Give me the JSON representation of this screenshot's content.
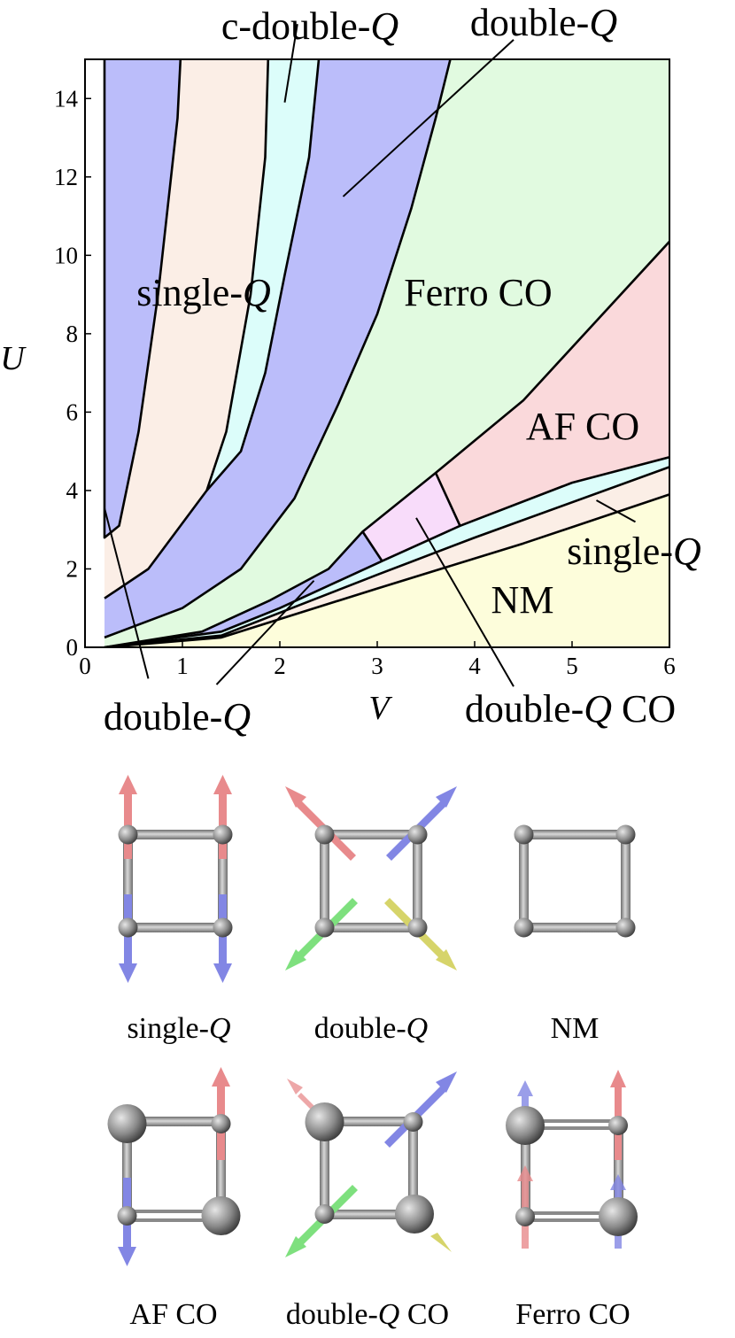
{
  "colors": {
    "blue_region": "#bbbdfa",
    "peach_region": "#fbeee6",
    "cyan_region": "#dcfdfa",
    "green_region": "#e1fae0",
    "pink_region": "#fad9db",
    "lavender_region": "#f8dcfa",
    "yellow_region": "#fdfddb",
    "spin_up": "#e88a8c",
    "spin_down": "#8286e4",
    "spin_green": "#7ee07e",
    "spin_yellow": "#d6d46a",
    "site": "#8a8a8a"
  },
  "chart_data": {
    "type": "phase-diagram",
    "xlabel": "V",
    "ylabel": "U",
    "xlim": [
      0,
      6
    ],
    "ylim": [
      0,
      15
    ],
    "x_ticks": [
      "0",
      "1",
      "2",
      "3",
      "4",
      "5",
      "6"
    ],
    "y_ticks": [
      "0",
      "2",
      "4",
      "6",
      "8",
      "10",
      "12",
      "14"
    ],
    "boundaries": [
      {
        "id": "b1",
        "points": [
          [
            0.2,
            15
          ],
          [
            0.2,
            2.8
          ],
          [
            0.35,
            3.1
          ],
          [
            0.55,
            5.5
          ],
          [
            0.75,
            9.0
          ],
          [
            0.95,
            13.5
          ],
          [
            0.98,
            15
          ]
        ]
      },
      {
        "id": "b2",
        "points": [
          [
            0.2,
            1.25
          ],
          [
            0.65,
            2.0
          ],
          [
            1.25,
            4.0
          ],
          [
            1.45,
            5.5
          ],
          [
            1.7,
            9.0
          ],
          [
            1.85,
            12.5
          ],
          [
            1.88,
            15
          ]
        ]
      },
      {
        "id": "b3",
        "points": [
          [
            1.25,
            4.0
          ],
          [
            1.6,
            5.0
          ],
          [
            1.85,
            7.0
          ],
          [
            2.05,
            9.5
          ],
          [
            2.3,
            12.5
          ],
          [
            2.4,
            15
          ]
        ]
      },
      {
        "id": "b4",
        "points": [
          [
            0.2,
            0.25
          ],
          [
            1.0,
            1.0
          ],
          [
            1.6,
            2.0
          ],
          [
            2.15,
            3.8
          ],
          [
            2.6,
            6.2
          ],
          [
            3.0,
            8.5
          ],
          [
            3.35,
            11.2
          ],
          [
            3.6,
            13.5
          ],
          [
            3.75,
            15
          ]
        ]
      },
      {
        "id": "b5",
        "points": [
          [
            0.2,
            0.0
          ],
          [
            1.2,
            0.4
          ],
          [
            1.9,
            1.2
          ],
          [
            2.5,
            2.0
          ],
          [
            2.85,
            2.95
          ],
          [
            3.6,
            4.45
          ],
          [
            4.5,
            6.3
          ],
          [
            6.0,
            10.35
          ]
        ]
      },
      {
        "id": "b6",
        "points": [
          [
            0.2,
            0.0
          ],
          [
            1.4,
            0.4
          ],
          [
            2.0,
            1.0
          ],
          [
            3.05,
            2.2
          ],
          [
            3.85,
            3.1
          ],
          [
            5.0,
            4.2
          ],
          [
            6.0,
            4.85
          ]
        ]
      },
      {
        "id": "b7",
        "points": [
          [
            0.2,
            0.0
          ],
          [
            1.4,
            0.3
          ],
          [
            3.0,
            1.85
          ],
          [
            4.0,
            2.8
          ],
          [
            6.0,
            4.6
          ]
        ]
      },
      {
        "id": "b8",
        "points": [
          [
            0.2,
            0.0
          ],
          [
            1.4,
            0.25
          ],
          [
            3.0,
            1.5
          ],
          [
            4.5,
            2.65
          ],
          [
            6.0,
            3.9
          ]
        ]
      },
      {
        "id": "b9",
        "points": [
          [
            2.85,
            2.95
          ],
          [
            3.05,
            2.2
          ]
        ]
      },
      {
        "id": "b10",
        "points": [
          [
            3.6,
            4.45
          ],
          [
            3.85,
            3.1
          ]
        ]
      }
    ],
    "regions": [
      {
        "name": "single-Q",
        "color_key": "blue_region",
        "polygon": [
          [
            0.2,
            15
          ],
          [
            0.98,
            15
          ],
          [
            0.95,
            13.5
          ],
          [
            0.75,
            9.0
          ],
          [
            0.55,
            5.5
          ],
          [
            0.35,
            3.1
          ],
          [
            0.2,
            2.8
          ]
        ]
      },
      {
        "name": "single-Q",
        "color_key": "peach_region",
        "polygon": [
          [
            0.98,
            15
          ],
          [
            1.88,
            15
          ],
          [
            1.85,
            12.5
          ],
          [
            1.7,
            9.0
          ],
          [
            1.45,
            5.5
          ],
          [
            1.25,
            4.0
          ],
          [
            0.65,
            2.0
          ],
          [
            0.2,
            1.25
          ],
          [
            0.2,
            2.8
          ],
          [
            0.35,
            3.1
          ],
          [
            0.55,
            5.5
          ],
          [
            0.75,
            9.0
          ],
          [
            0.95,
            13.5
          ]
        ]
      },
      {
        "name": "c-double-Q",
        "color_key": "cyan_region",
        "polygon": [
          [
            1.88,
            15
          ],
          [
            2.4,
            15
          ],
          [
            2.3,
            12.5
          ],
          [
            2.05,
            9.5
          ],
          [
            1.85,
            7.0
          ],
          [
            1.6,
            5.0
          ],
          [
            1.25,
            4.0
          ],
          [
            1.45,
            5.5
          ],
          [
            1.7,
            9.0
          ],
          [
            1.85,
            12.5
          ]
        ]
      },
      {
        "name": "double-Q",
        "color_key": "blue_region",
        "polygon": [
          [
            2.4,
            15
          ],
          [
            3.75,
            15
          ],
          [
            3.6,
            13.5
          ],
          [
            3.35,
            11.2
          ],
          [
            3.0,
            8.5
          ],
          [
            2.6,
            6.2
          ],
          [
            2.15,
            3.8
          ],
          [
            1.6,
            2.0
          ],
          [
            1.0,
            1.0
          ],
          [
            0.2,
            0.25
          ],
          [
            0.2,
            1.25
          ],
          [
            0.65,
            2.0
          ],
          [
            1.25,
            4.0
          ],
          [
            1.6,
            5.0
          ],
          [
            1.85,
            7.0
          ],
          [
            2.05,
            9.5
          ],
          [
            2.3,
            12.5
          ]
        ]
      },
      {
        "name": "Ferro CO",
        "color_key": "green_region",
        "polygon": [
          [
            3.75,
            15
          ],
          [
            6.0,
            15
          ],
          [
            6.0,
            10.35
          ],
          [
            4.5,
            6.3
          ],
          [
            3.6,
            4.45
          ],
          [
            2.85,
            2.95
          ],
          [
            2.5,
            2.0
          ],
          [
            1.9,
            1.2
          ],
          [
            1.2,
            0.4
          ],
          [
            0.2,
            0.0
          ],
          [
            0.2,
            0.25
          ],
          [
            1.0,
            1.0
          ],
          [
            1.6,
            2.0
          ],
          [
            2.15,
            3.8
          ],
          [
            2.6,
            6.2
          ],
          [
            3.0,
            8.5
          ],
          [
            3.35,
            11.2
          ],
          [
            3.6,
            13.5
          ]
        ]
      },
      {
        "name": "AF CO",
        "color_key": "pink_region",
        "polygon": [
          [
            6.0,
            10.35
          ],
          [
            6.0,
            4.85
          ],
          [
            5.0,
            4.2
          ],
          [
            3.85,
            3.1
          ],
          [
            3.6,
            4.45
          ],
          [
            4.5,
            6.3
          ]
        ]
      },
      {
        "name": "double-Q CO",
        "color_key": "lavender_region",
        "polygon": [
          [
            2.85,
            2.95
          ],
          [
            3.6,
            4.45
          ],
          [
            3.85,
            3.1
          ],
          [
            3.05,
            2.2
          ]
        ]
      },
      {
        "name": "double-Q",
        "color_key": "blue_region",
        "polygon": [
          [
            0.2,
            0.0
          ],
          [
            1.2,
            0.4
          ],
          [
            1.9,
            1.2
          ],
          [
            2.5,
            2.0
          ],
          [
            2.85,
            2.95
          ],
          [
            3.05,
            2.2
          ],
          [
            2.0,
            1.0
          ],
          [
            1.4,
            0.4
          ]
        ]
      },
      {
        "name": "c-double-Q",
        "color_key": "cyan_region",
        "polygon": [
          [
            0.2,
            0.0
          ],
          [
            1.4,
            0.4
          ],
          [
            2.0,
            1.0
          ],
          [
            3.05,
            2.2
          ],
          [
            3.85,
            3.1
          ],
          [
            5.0,
            4.2
          ],
          [
            6.0,
            4.85
          ],
          [
            6.0,
            4.6
          ],
          [
            4.0,
            2.8
          ],
          [
            3.0,
            1.85
          ],
          [
            1.4,
            0.3
          ]
        ]
      },
      {
        "name": "single-Q",
        "color_key": "peach_region",
        "polygon": [
          [
            0.2,
            0.0
          ],
          [
            1.4,
            0.3
          ],
          [
            3.0,
            1.85
          ],
          [
            4.0,
            2.8
          ],
          [
            6.0,
            4.6
          ],
          [
            6.0,
            3.9
          ],
          [
            4.5,
            2.65
          ],
          [
            3.0,
            1.5
          ],
          [
            1.4,
            0.25
          ]
        ]
      },
      {
        "name": "NM",
        "color_key": "yellow_region",
        "polygon": [
          [
            0.2,
            0.0
          ],
          [
            6.0,
            0.0
          ],
          [
            6.0,
            3.9
          ],
          [
            4.5,
            2.65
          ],
          [
            3.0,
            1.5
          ],
          [
            1.4,
            0.25
          ]
        ]
      }
    ],
    "labels": {
      "single_q_main": {
        "text": "single-",
        "italic": "Q",
        "at": [
          1.15,
          9.1
        ]
      },
      "ferro_co": {
        "text": "Ferro CO",
        "at": [
          4.0,
          9.1
        ]
      },
      "af_co": {
        "text": "AF CO",
        "at": [
          5.3,
          5.5
        ]
      },
      "nm": {
        "text": "NM",
        "at": [
          4.75,
          1.0
        ]
      },
      "single_q_right": {
        "text": "single-",
        "italic": "Q"
      },
      "double_q_co": {
        "text": "double-",
        "italic": "Q",
        "suffix": " CO"
      },
      "double_q_bottom": {
        "text": "double-",
        "italic": "Q"
      },
      "c_double_q_top": {
        "text": "c-double-",
        "italic": "Q"
      },
      "double_q_top": {
        "text": "double-",
        "italic": "Q"
      }
    },
    "annotation_lines": [
      {
        "label": "c-double_q_top",
        "from": [
          2.18,
          15.9
        ],
        "to": [
          2.05,
          13.9
        ]
      },
      {
        "label": "double_q_top",
        "from": [
          4.4,
          15.5
        ],
        "to": [
          2.65,
          11.5
        ]
      },
      {
        "label": "double_q_bottom_1",
        "from": [
          0.2,
          3.55
        ],
        "to": [
          0.65,
          -0.8
        ]
      },
      {
        "label": "double_q_bottom_2",
        "from": [
          1.35,
          -0.95
        ],
        "to": [
          2.35,
          1.7
        ]
      },
      {
        "label": "double_q_co",
        "from": [
          3.4,
          3.3
        ],
        "to": [
          4.4,
          -1.0
        ]
      },
      {
        "label": "single_q_right",
        "from": [
          5.25,
          3.75
        ],
        "to": [
          5.65,
          3.2
        ]
      }
    ]
  },
  "spin_configs": [
    {
      "caption": "single-",
      "caption_italic": "Q",
      "caption_suffix": ""
    },
    {
      "caption": "double-",
      "caption_italic": "Q",
      "caption_suffix": ""
    },
    {
      "caption": "NM",
      "caption_italic": "",
      "caption_suffix": ""
    },
    {
      "caption": "AF CO",
      "caption_italic": "",
      "caption_suffix": ""
    },
    {
      "caption": "double-",
      "caption_italic": "Q",
      "caption_suffix": " CO"
    },
    {
      "caption": "Ferro CO",
      "caption_italic": "",
      "caption_suffix": ""
    }
  ]
}
